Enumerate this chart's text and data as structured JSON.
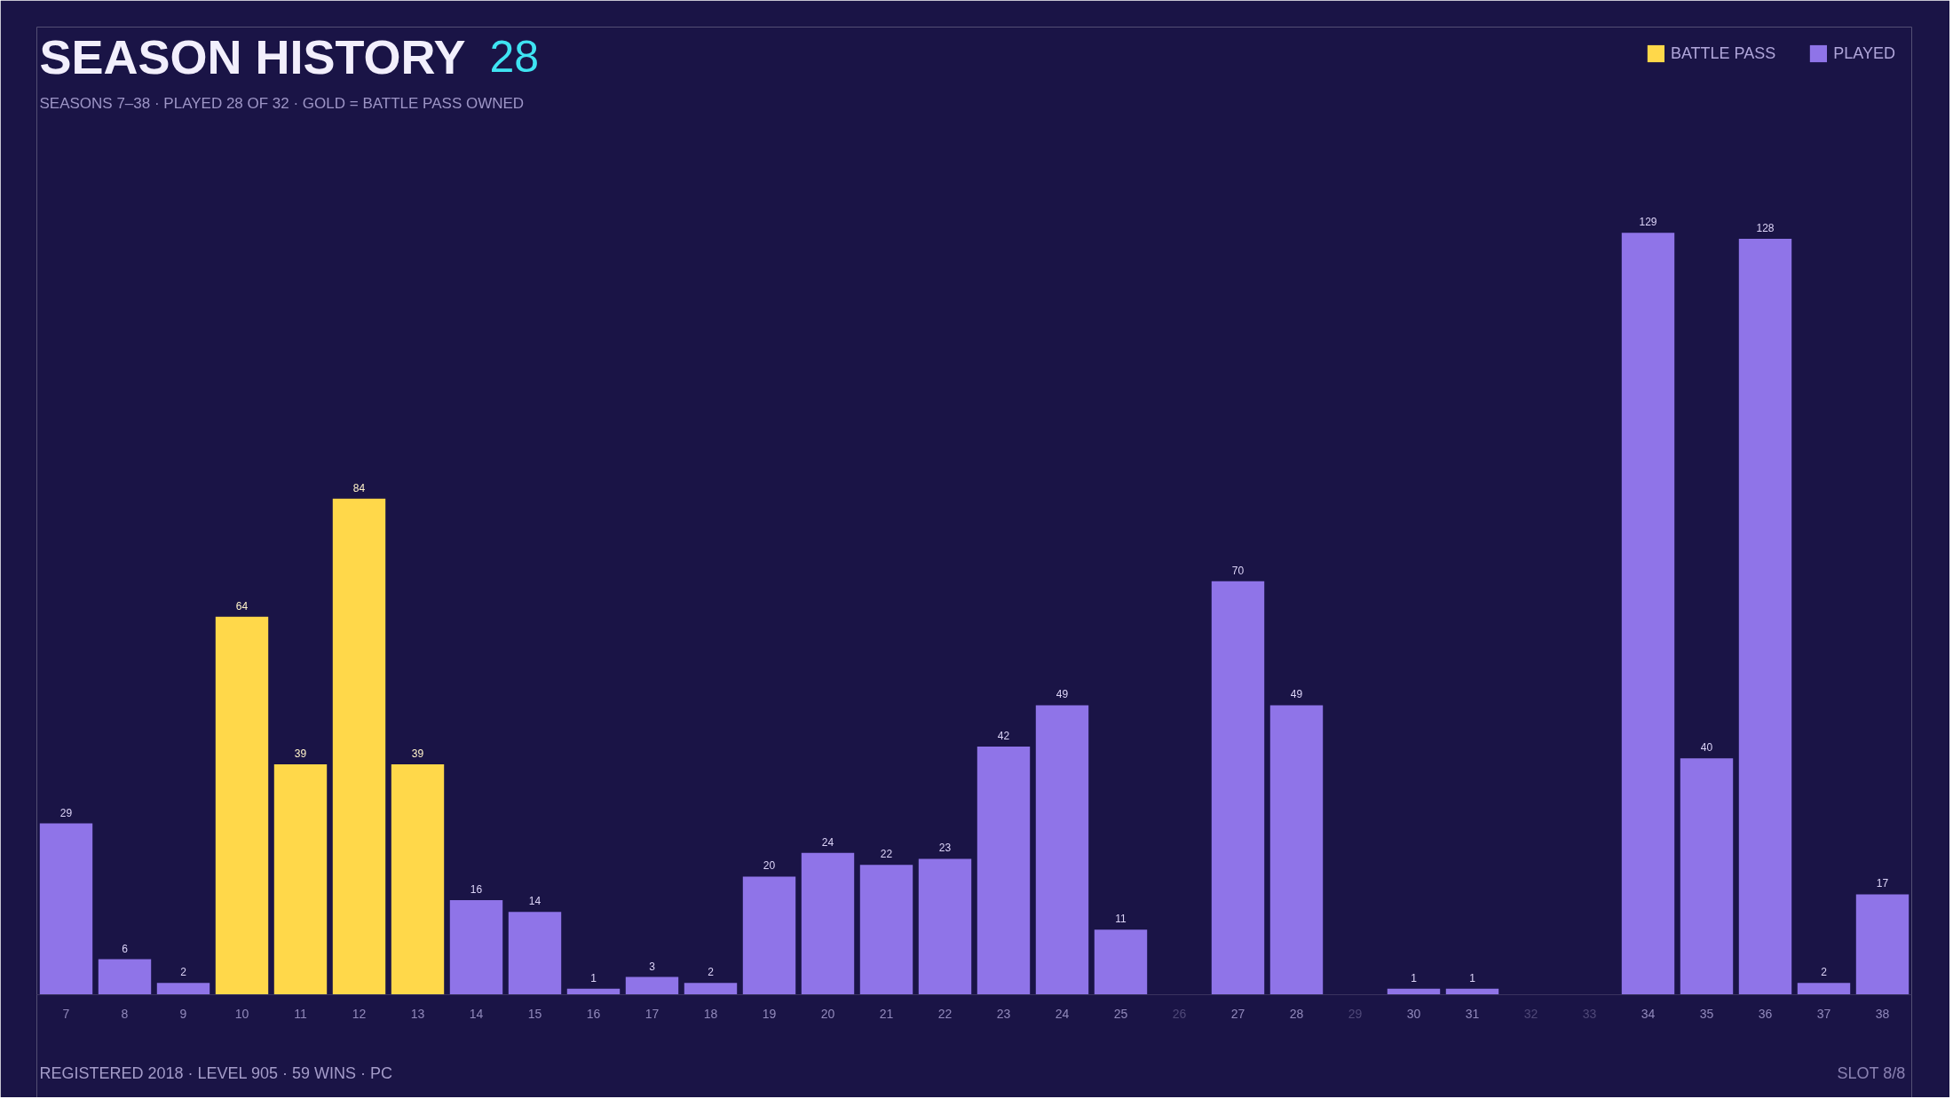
{
  "chart_data": {
    "type": "bar",
    "title": "SEASON HISTORY",
    "subtitle": "SEASONS 7–38 · PLAYED 28 OF 32 · GOLD = BATTLE PASS OWNED",
    "categories": [
      "7",
      "8",
      "9",
      "10",
      "11",
      "12",
      "13",
      "14",
      "15",
      "16",
      "17",
      "18",
      "19",
      "20",
      "21",
      "22",
      "23",
      "24",
      "25",
      "26",
      "27",
      "28",
      "29",
      "30",
      "31",
      "32",
      "33",
      "34",
      "35",
      "36",
      "37",
      "38"
    ],
    "stacked": true,
    "series": [
      {
        "name": "BATTLE PASS",
        "color": "#ffd84a",
        "values": [
          null,
          null,
          null,
          64,
          39,
          84,
          39,
          null,
          null,
          null,
          null,
          null,
          null,
          null,
          null,
          null,
          null,
          null,
          null,
          null,
          null,
          null,
          null,
          null,
          null,
          null,
          null,
          null,
          null,
          null,
          null,
          null
        ]
      },
      {
        "name": "PLAYED",
        "color": "#8f74e8",
        "values": [
          29,
          6,
          2,
          null,
          null,
          null,
          null,
          16,
          14,
          1,
          3,
          2,
          20,
          24,
          22,
          23,
          42,
          49,
          11,
          null,
          70,
          49,
          null,
          1,
          1,
          null,
          null,
          129,
          40,
          128,
          2,
          17
        ]
      }
    ],
    "data_labels": true,
    "legend": "top right",
    "annotations": [
      "28",
      "REGISTERED 2018 · LEVEL 905 · 59 WINS · PC",
      "SLOT 8/8"
    ]
  }
}
